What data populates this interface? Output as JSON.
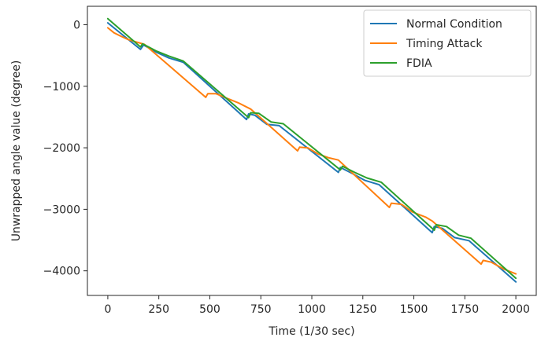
{
  "chart_data": {
    "type": "line",
    "title": "",
    "xlabel": "Time (1/30 sec)",
    "ylabel": "Unwrapped angle value (degree)",
    "xlim": [
      -100,
      2100
    ],
    "ylim": [
      -4400,
      300
    ],
    "xticks": [
      0,
      250,
      500,
      750,
      1000,
      1250,
      1500,
      1750,
      2000
    ],
    "yticks": [
      0,
      -1000,
      -2000,
      -3000,
      -4000
    ],
    "xtick_labels": [
      "0",
      "250",
      "500",
      "750",
      "1000",
      "1250",
      "1500",
      "1750",
      "2000"
    ],
    "ytick_labels": [
      "0",
      "−1000",
      "−2000",
      "−3000",
      "−4000"
    ],
    "grid": false,
    "legend_position": "top-right",
    "series": [
      {
        "name": "Normal Condition",
        "color": "#1f77b4",
        "points": [
          [
            0,
            30
          ],
          [
            160,
            -400
          ],
          [
            175,
            -330
          ],
          [
            240,
            -450
          ],
          [
            300,
            -540
          ],
          [
            370,
            -610
          ],
          [
            680,
            -1540
          ],
          [
            690,
            -1450
          ],
          [
            720,
            -1470
          ],
          [
            780,
            -1620
          ],
          [
            840,
            -1640
          ],
          [
            1130,
            -2400
          ],
          [
            1140,
            -2320
          ],
          [
            1200,
            -2420
          ],
          [
            1260,
            -2530
          ],
          [
            1330,
            -2600
          ],
          [
            1590,
            -3380
          ],
          [
            1600,
            -3280
          ],
          [
            1640,
            -3310
          ],
          [
            1700,
            -3460
          ],
          [
            1770,
            -3510
          ],
          [
            2000,
            -4180
          ]
        ]
      },
      {
        "name": "Timing Attack",
        "color": "#ff7f0e",
        "points": [
          [
            0,
            -50
          ],
          [
            30,
            -130
          ],
          [
            60,
            -180
          ],
          [
            100,
            -240
          ],
          [
            140,
            -280
          ],
          [
            180,
            -320
          ],
          [
            480,
            -1180
          ],
          [
            490,
            -1120
          ],
          [
            530,
            -1120
          ],
          [
            580,
            -1190
          ],
          [
            640,
            -1270
          ],
          [
            700,
            -1370
          ],
          [
            930,
            -2050
          ],
          [
            940,
            -1990
          ],
          [
            980,
            -2000
          ],
          [
            1030,
            -2100
          ],
          [
            1080,
            -2160
          ],
          [
            1130,
            -2200
          ],
          [
            1380,
            -2970
          ],
          [
            1390,
            -2900
          ],
          [
            1440,
            -2920
          ],
          [
            1490,
            -3040
          ],
          [
            1560,
            -3130
          ],
          [
            1590,
            -3190
          ],
          [
            1830,
            -3890
          ],
          [
            1840,
            -3830
          ],
          [
            1880,
            -3860
          ],
          [
            1940,
            -3970
          ],
          [
            2000,
            -4050
          ]
        ]
      },
      {
        "name": "FDIA",
        "color": "#2ca02c",
        "points": [
          [
            0,
            100
          ],
          [
            160,
            -360
          ],
          [
            170,
            -310
          ],
          [
            240,
            -430
          ],
          [
            300,
            -510
          ],
          [
            370,
            -590
          ],
          [
            690,
            -1510
          ],
          [
            700,
            -1430
          ],
          [
            740,
            -1440
          ],
          [
            800,
            -1580
          ],
          [
            860,
            -1610
          ],
          [
            1140,
            -2360
          ],
          [
            1150,
            -2300
          ],
          [
            1210,
            -2400
          ],
          [
            1270,
            -2490
          ],
          [
            1340,
            -2560
          ],
          [
            1600,
            -3340
          ],
          [
            1610,
            -3250
          ],
          [
            1660,
            -3280
          ],
          [
            1720,
            -3420
          ],
          [
            1780,
            -3470
          ],
          [
            2000,
            -4120
          ]
        ]
      }
    ]
  }
}
